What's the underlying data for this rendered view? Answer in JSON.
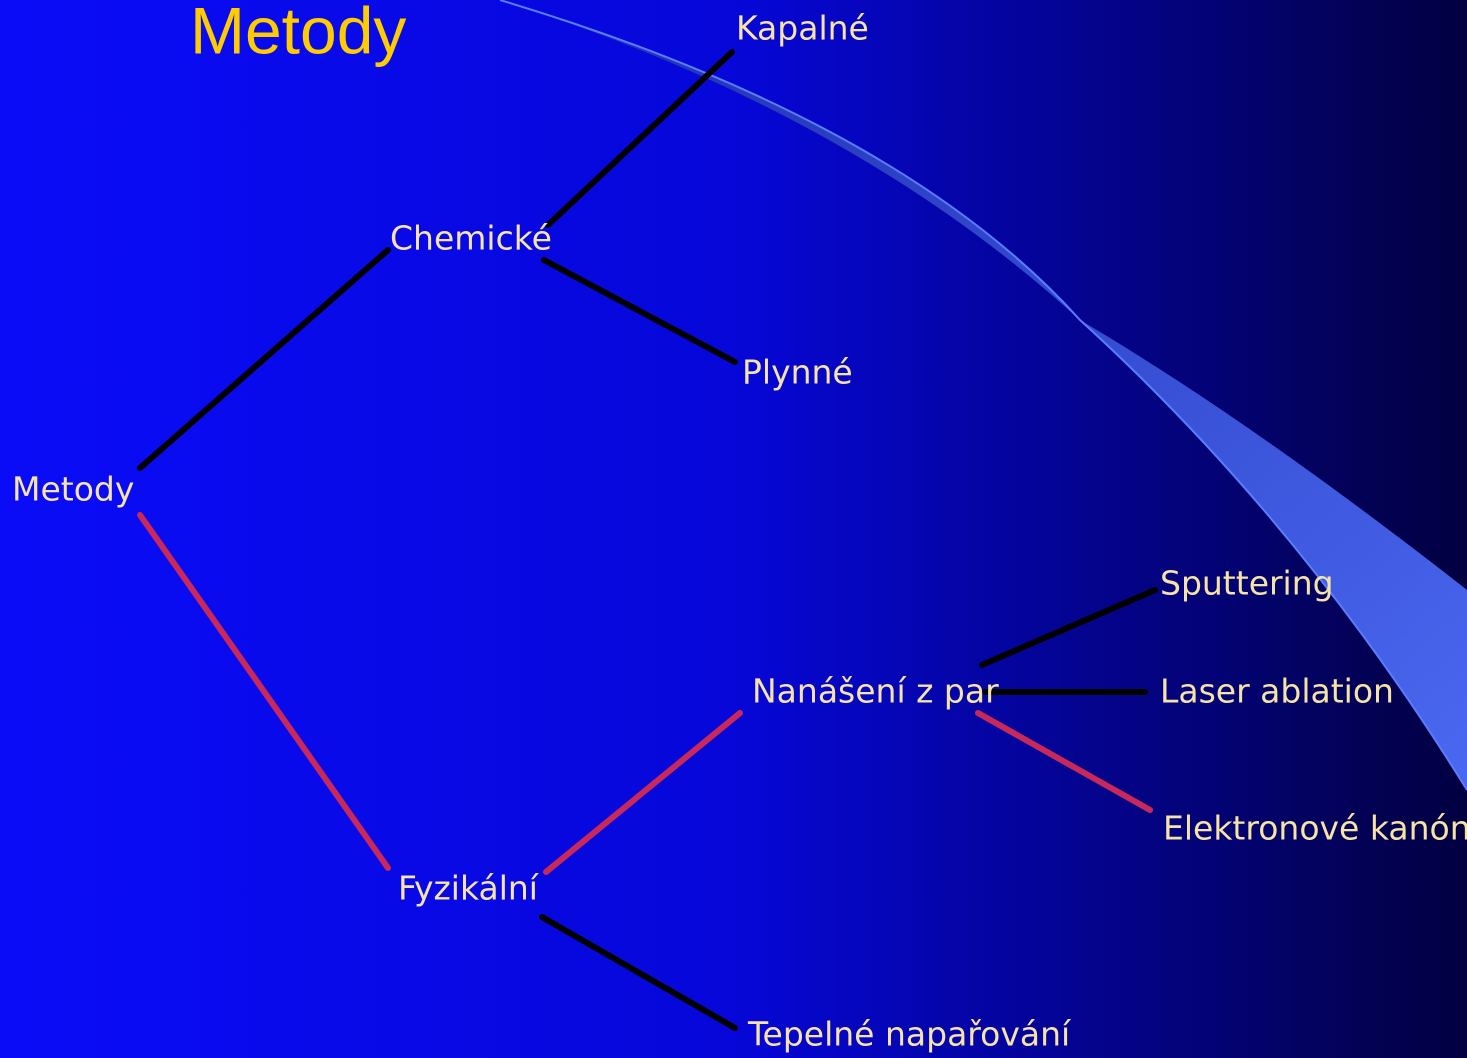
{
  "title": "Metody",
  "nodes": [
    {
      "label": "Metody"
    },
    {
      "label": "Chemické"
    },
    {
      "label": "Kapalné"
    },
    {
      "label": "Plynné"
    },
    {
      "label": "Fyzikální"
    },
    {
      "label": "Nanášení z par"
    },
    {
      "label": "Sputtering"
    },
    {
      "label": "Laser ablation"
    },
    {
      "label": "Elektronové kanóny"
    },
    {
      "label": "Tepelné napařování"
    }
  ]
}
